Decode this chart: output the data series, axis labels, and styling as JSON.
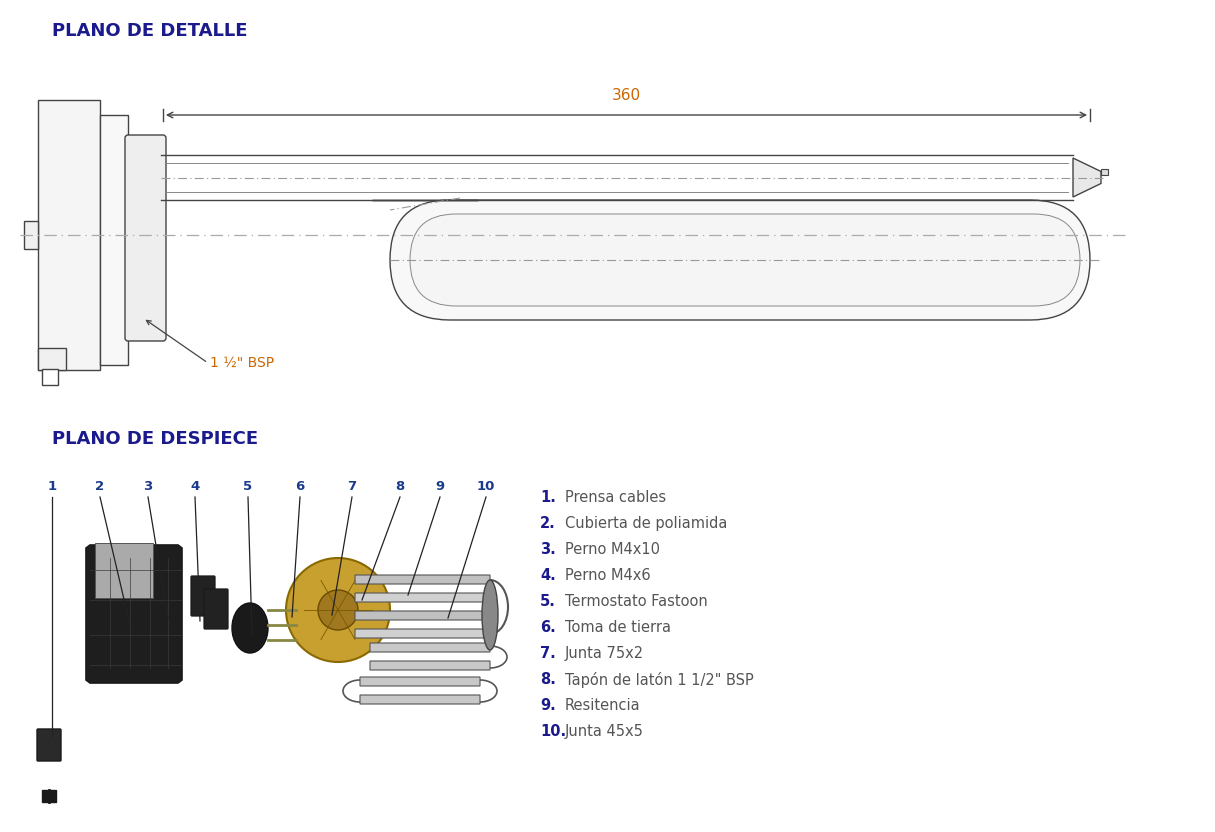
{
  "title_detail": "PLANO DE DETALLE",
  "title_despiece": "PLANO DE DESPIECE",
  "title_color": "#1a1a8c",
  "title_fontsize": 13,
  "bg_color": "#ffffff",
  "dim_text": "360",
  "bsp_text": "1 ½\" BSP",
  "bsp_color": "#cc6600",
  "dim_color": "#cc6600",
  "parts": [
    {
      "num": "1.",
      "text": "Prensa cables"
    },
    {
      "num": "2.",
      "text": "Cubierta de poliamida"
    },
    {
      "num": "3.",
      "text": "Perno M4x10"
    },
    {
      "num": "4.",
      "text": "Perno M4x6"
    },
    {
      "num": "5.",
      "text": "Termostato Fastoon"
    },
    {
      "num": "6.",
      "text": "Toma de tierra"
    },
    {
      "num": "7.",
      "text": "Junta 75x2"
    },
    {
      "num": "8.",
      "text": "Tapón de latón 1 1/2\" BSP"
    },
    {
      "num": "9.",
      "text": "Resitencia"
    },
    {
      "num": "10.",
      "text": "Junta 45x5"
    }
  ],
  "part_nums_color": "#1a1a8c",
  "part_text_color": "#555555",
  "part_fontsize": 10.5,
  "line_labels": [
    "1",
    "2",
    "3",
    "4",
    "5",
    "6",
    "7",
    "8",
    "9",
    "10"
  ],
  "label_color": "#1a3a8c",
  "label_fontsize": 9.5
}
